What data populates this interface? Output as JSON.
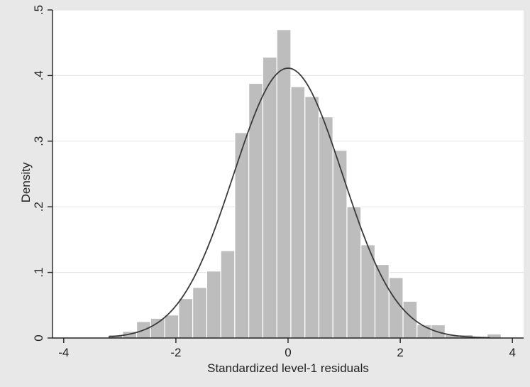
{
  "chart_data": {
    "type": "bar",
    "subtype": "histogram-with-normal-density-curve",
    "xlabel": "Standardized level-1 residuals",
    "ylabel": "Density",
    "xlim": [
      -4.2,
      4.2
    ],
    "ylim": [
      0,
      0.5
    ],
    "xticks": [
      -4,
      -2,
      0,
      2,
      4
    ],
    "xtick_labels": [
      "-4",
      "-2",
      "0",
      "2",
      "4"
    ],
    "yticks": [
      0,
      0.1,
      0.2,
      0.3,
      0.4,
      0.5
    ],
    "ytick_labels": [
      "0",
      ".1",
      ".2",
      ".3",
      ".4",
      ".5"
    ],
    "grid": "horizontal",
    "bin_width": 0.25,
    "bin_start": -3.2,
    "bins": [
      {
        "x0": -3.2,
        "x1": -2.95,
        "density": 0.005
      },
      {
        "x0": -2.95,
        "x1": -2.7,
        "density": 0.01
      },
      {
        "x0": -2.7,
        "x1": -2.45,
        "density": 0.025
      },
      {
        "x0": -2.45,
        "x1": -2.2,
        "density": 0.03
      },
      {
        "x0": -2.2,
        "x1": -1.95,
        "density": 0.035
      },
      {
        "x0": -1.95,
        "x1": -1.7,
        "density": 0.06
      },
      {
        "x0": -1.7,
        "x1": -1.45,
        "density": 0.077
      },
      {
        "x0": -1.45,
        "x1": -1.2,
        "density": 0.102
      },
      {
        "x0": -1.2,
        "x1": -0.95,
        "density": 0.133
      },
      {
        "x0": -0.95,
        "x1": -0.7,
        "density": 0.313
      },
      {
        "x0": -0.7,
        "x1": -0.45,
        "density": 0.388
      },
      {
        "x0": -0.45,
        "x1": -0.2,
        "density": 0.428
      },
      {
        "x0": -0.2,
        "x1": 0.05,
        "density": 0.47
      },
      {
        "x0": 0.05,
        "x1": 0.3,
        "density": 0.383
      },
      {
        "x0": 0.3,
        "x1": 0.55,
        "density": 0.368
      },
      {
        "x0": 0.55,
        "x1": 0.8,
        "density": 0.337
      },
      {
        "x0": 0.8,
        "x1": 1.05,
        "density": 0.286
      },
      {
        "x0": 1.05,
        "x1": 1.3,
        "density": 0.2
      },
      {
        "x0": 1.3,
        "x1": 1.55,
        "density": 0.142
      },
      {
        "x0": 1.55,
        "x1": 1.8,
        "density": 0.112
      },
      {
        "x0": 1.8,
        "x1": 2.05,
        "density": 0.092
      },
      {
        "x0": 2.05,
        "x1": 2.3,
        "density": 0.056
      },
      {
        "x0": 2.3,
        "x1": 2.55,
        "density": 0.02
      },
      {
        "x0": 2.55,
        "x1": 2.8,
        "density": 0.02
      },
      {
        "x0": 2.8,
        "x1": 3.05,
        "density": 0.005
      },
      {
        "x0": 3.05,
        "x1": 3.3,
        "density": 0.005
      },
      {
        "x0": 3.3,
        "x1": 3.55,
        "density": 0.0
      },
      {
        "x0": 3.55,
        "x1": 3.8,
        "density": 0.006
      }
    ],
    "curve": {
      "kind": "normal-density",
      "mean": 0.0,
      "sd": 0.97,
      "x_range": [
        -3.2,
        3.6
      ]
    },
    "colors": {
      "background": "#e8e8e8",
      "plot_area": "#ffffff",
      "bar_fill": "#bdbdbd",
      "bar_edge": "#ffffff",
      "curve": "#3a3a3a",
      "grid": "#e6e6e6",
      "axis": "#222222"
    }
  }
}
